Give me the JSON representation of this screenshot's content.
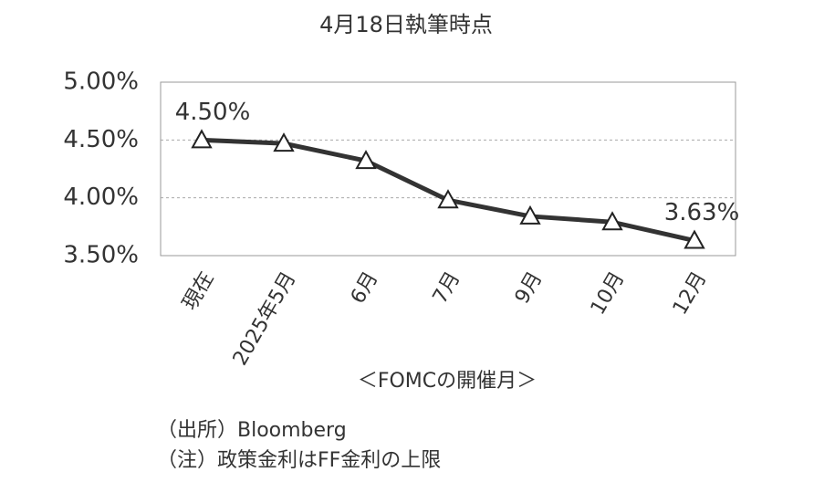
{
  "chart_data": {
    "type": "line",
    "title": "4月18日執筆時点",
    "categories": [
      "現在",
      "2025年5月",
      "6月",
      "7月",
      "9月",
      "10月",
      "12月"
    ],
    "values": [
      4.5,
      4.47,
      4.32,
      3.98,
      3.84,
      3.79,
      3.63
    ],
    "value_labels": [
      "4.50%",
      null,
      null,
      null,
      null,
      null,
      "3.63%"
    ],
    "color": "#333333",
    "x_label": "＜FOMCの開催月＞",
    "ylim": [
      3.5,
      5.0
    ],
    "yticks": [
      {
        "value": 3.5,
        "label": "3.50%"
      },
      {
        "value": 4.0,
        "label": "4.00%"
      },
      {
        "value": 4.5,
        "label": "4.50%"
      },
      {
        "value": 5.0,
        "label": "5.00%"
      }
    ],
    "grid": true,
    "notes": [
      "（出所）Bloomberg",
      "（注）政策金利はFF金利の上限"
    ]
  }
}
